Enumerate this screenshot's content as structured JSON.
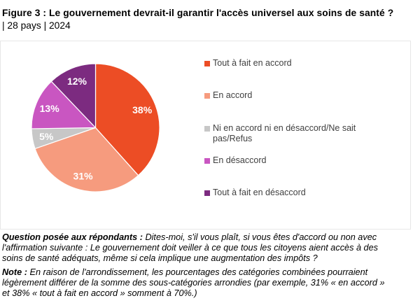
{
  "header": {
    "title": "Figure 3 : Le gouvernement devrait-il garantir l'accès universel aux soins de santé ?",
    "subtitle": "| 28 pays | 2024"
  },
  "chart_data": {
    "type": "pie",
    "title": "Figure 3 : Le gouvernement devrait-il garantir l'accès universel aux soins de santé ?",
    "subtitle": "| 28 pays | 2024",
    "unit": "%",
    "start_angle_deg": 0,
    "direction": "clockwise",
    "legend_position": "right",
    "label_color": "#ffffff",
    "slices": [
      {
        "label": "Tout à fait en accord",
        "value": 38,
        "display": "38%",
        "color": "#ec4d25"
      },
      {
        "label": "En accord",
        "value": 31,
        "display": "31%",
        "color": "#f69b7e"
      },
      {
        "label": "Ni en accord ni en désaccord/Ne sait pas/Refus",
        "value": 5,
        "display": "5%",
        "color": "#c7c7c7"
      },
      {
        "label": "En désaccord",
        "value": 13,
        "display": "13%",
        "color": "#c956c1"
      },
      {
        "label": "Tout à fait en désaccord",
        "value": 12,
        "display": "12%",
        "color": "#7c2b80"
      }
    ]
  },
  "notes": {
    "question_label": "Question posée aux répondants :",
    "question_text": "Dites-moi, s'il vous plaît, si vous êtes d'accord ou non avec l'affirmation suivante : Le gouvernement doit veiller à ce que tous les citoyens aient accès à des soins de santé adéquats, même si cela implique une augmentation des impôts ?",
    "note_label": "Note :",
    "note_text": "En raison de l'arrondissement, les pourcentages des catégories combinées pourraient légèrement différer de la somme des sous-catégories arrondies (par exemple, 31% « en accord » et 38% « tout à fait en accord » somment à 70%.)"
  }
}
